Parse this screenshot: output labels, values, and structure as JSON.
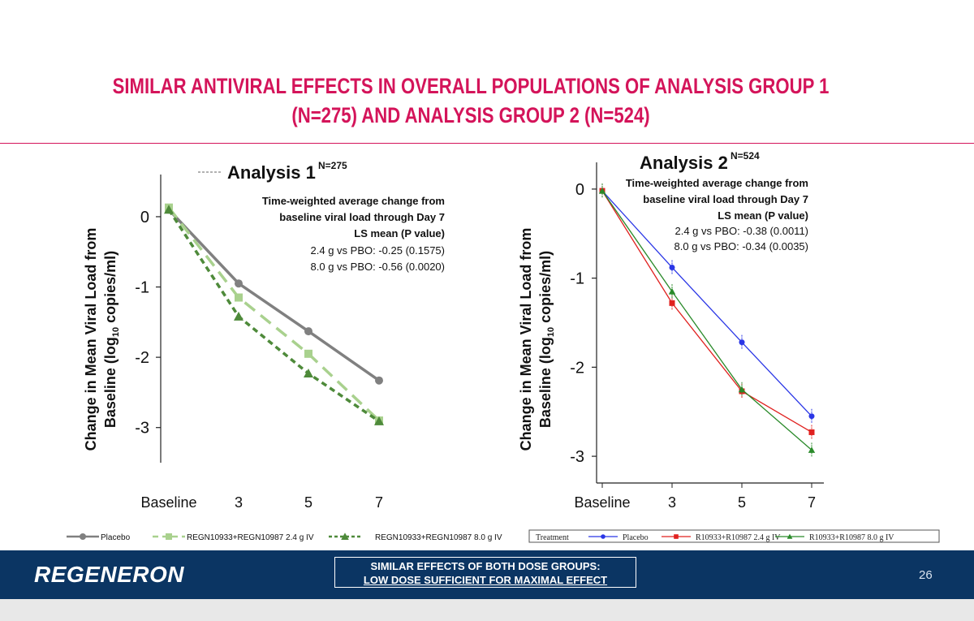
{
  "slide": {
    "title_line1": "SIMILAR ANTIVIRAL EFFECTS IN OVERALL POPULATIONS OF ANALYSIS GROUP 1",
    "title_line2": "(N=275) AND ANALYSIS GROUP 2 (N=524)",
    "accent_color": "#d4145a",
    "footer": {
      "logo": "REGENERON",
      "callout_line1": "SIMILAR EFFECTS OF BOTH DOSE GROUPS:",
      "callout_line2": "LOW DOSE SUFFICIENT FOR MAXIMAL EFFECT",
      "page_number": "26",
      "background_color": "#0b3563"
    }
  },
  "chart_data": [
    {
      "type": "line",
      "title": "Analysis 1",
      "title_superscript": "N=275",
      "ylabel_line1": "Change in Mean Viral Load from",
      "ylabel_line2": "Baseline (log",
      "ylabel_sub": "10",
      "ylabel_tail": " copies/ml)",
      "categories": [
        "Baseline",
        "3",
        "5",
        "7"
      ],
      "yticks": [
        "0",
        "-1",
        "-2",
        "-3"
      ],
      "ylim": [
        -3.5,
        0.6
      ],
      "annotation": {
        "line1": "Time-weighted average change from",
        "line2": "baseline viral load through Day 7",
        "line3": "LS mean (P value)",
        "line4": "2.4 g vs PBO:  -0.25 (0.1575)",
        "line5": "8.0 g vs PBO: -0.56 (0.0020)"
      },
      "legend_position": "bottom",
      "series": [
        {
          "name": "Placebo",
          "values": [
            0.1,
            -0.95,
            -1.63,
            -2.33
          ],
          "color": "#808080",
          "dash": "",
          "marker": "circle"
        },
        {
          "name": "REGN10933+REGN10987 2.4 g IV",
          "values": [
            0.13,
            -1.15,
            -1.95,
            -2.9
          ],
          "color": "#a9d18e",
          "dash": "16 9",
          "marker": "square"
        },
        {
          "name": "REGN10933+REGN10987 8.0 g IV",
          "values": [
            0.1,
            -1.42,
            -2.23,
            -2.91
          ],
          "color": "#4e8a3a",
          "dash": "7 5",
          "marker": "triangle"
        }
      ]
    },
    {
      "type": "line",
      "title": "Analysis 2",
      "title_superscript": "N=524",
      "ylabel_line1": "Change in Mean Viral Load from",
      "ylabel_line2": "Baseline (log",
      "ylabel_sub": "10",
      "ylabel_tail": " copies/ml)",
      "categories": [
        "Baseline",
        "3",
        "5",
        "7"
      ],
      "yticks": [
        "0",
        "-1",
        "-2",
        "-3"
      ],
      "ylim": [
        -3.3,
        0.3
      ],
      "annotation": {
        "line1": "Time-weighted average change from",
        "line2": "baseline viral load through Day 7",
        "line3": "LS mean (P value)",
        "line4": "2.4 g vs PBO:  -0.38 (0.0011)",
        "line5": "8.0 g vs PBO: -0.34 (0.0035)"
      },
      "legend_title": "Treatment",
      "legend_position": "bottom",
      "series": [
        {
          "name": "Placebo",
          "values": [
            -0.02,
            -0.88,
            -1.72,
            -2.55
          ],
          "color": "#2a36e6",
          "marker": "circle"
        },
        {
          "name": "R10933+R10987 2.4 g IV",
          "values": [
            -0.02,
            -1.28,
            -2.27,
            -2.73
          ],
          "color": "#e0211f",
          "marker": "square"
        },
        {
          "name": "R10933+R10987 8.0 g IV",
          "values": [
            -0.02,
            -1.15,
            -2.25,
            -2.93
          ],
          "color": "#2a8a2a",
          "marker": "triangle"
        }
      ]
    }
  ]
}
